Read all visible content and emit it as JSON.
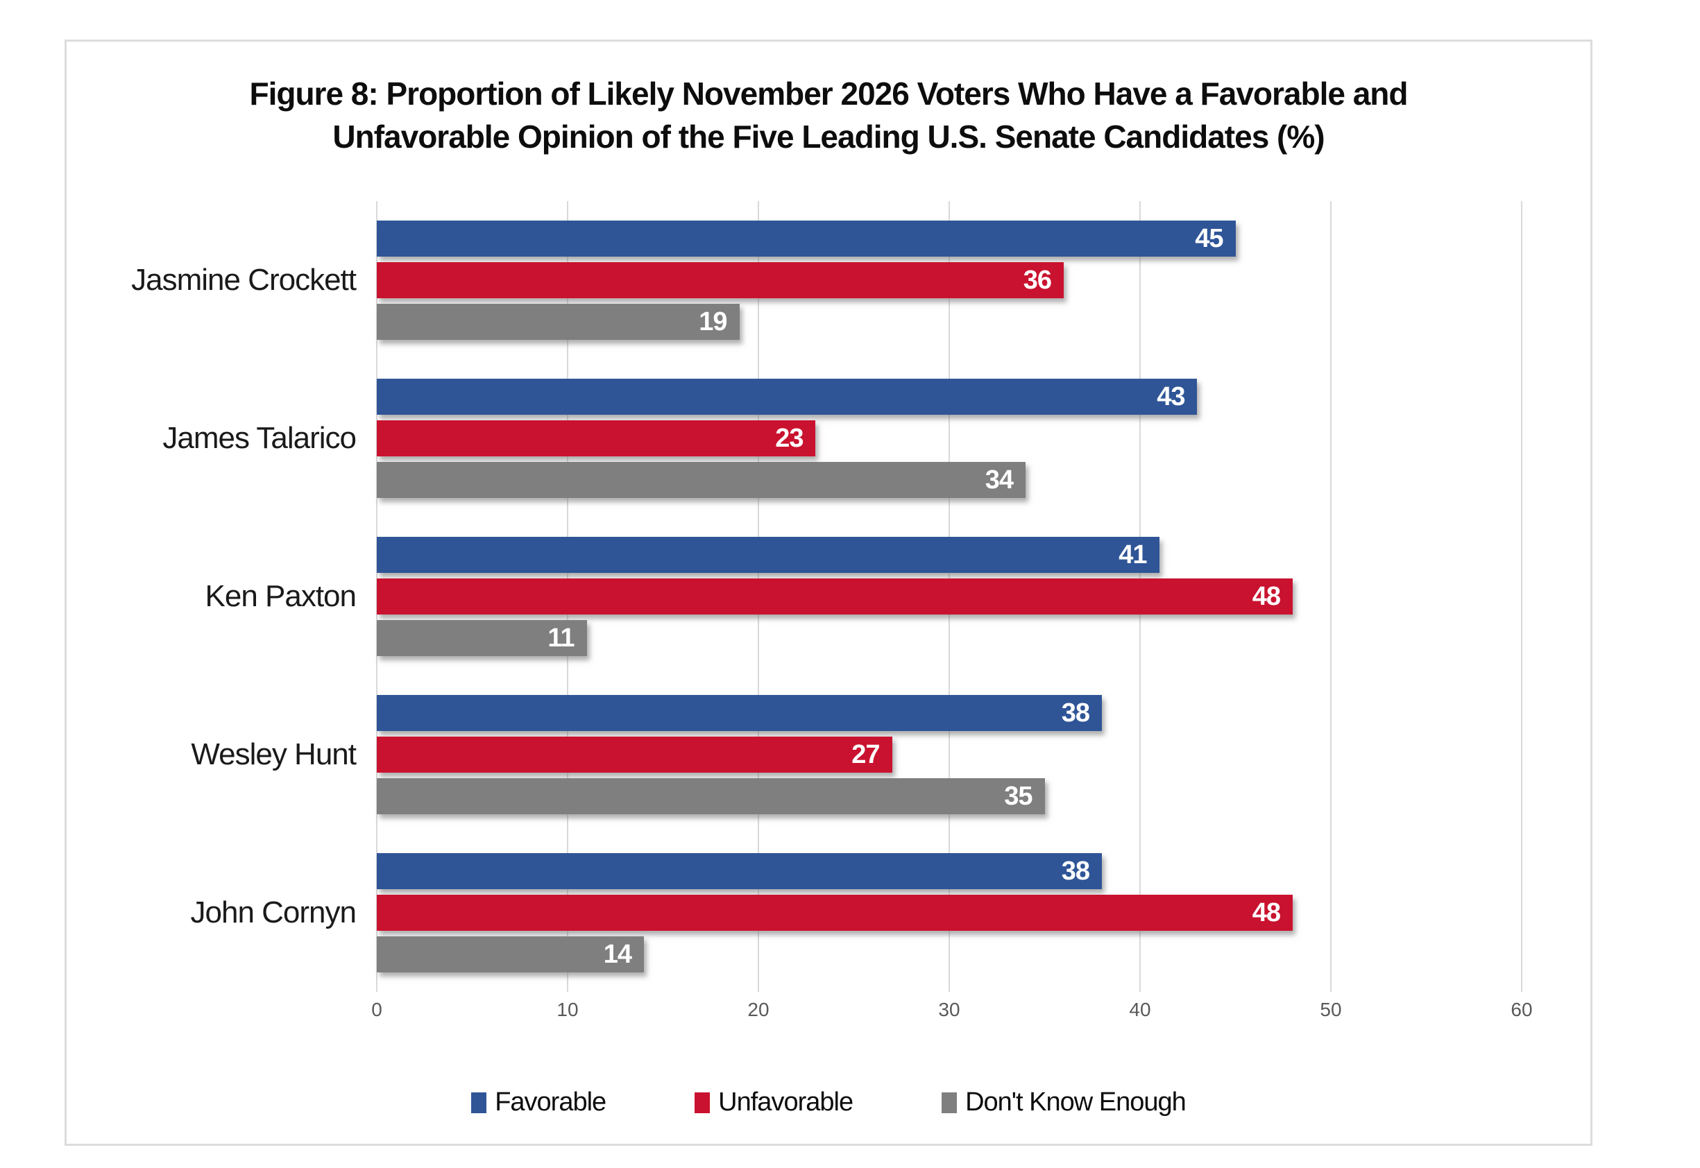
{
  "title": {
    "lines": [
      "Figure 8: Proportion of Likely November 2026 Voters Who Have a Favorable and",
      "Unfavorable Opinion of the Five Leading U.S. Senate Candidates (%)"
    ]
  },
  "chart_data": {
    "type": "bar",
    "orientation": "horizontal",
    "title": "Figure 8: Proportion of Likely November 2026 Voters Who Have a Favorable and Unfavorable Opinion of the Five Leading U.S. Senate Candidates (%)",
    "categories": [
      "Jasmine Crockett",
      "James Talarico",
      "Ken Paxton",
      "Wesley Hunt",
      "John Cornyn"
    ],
    "series": [
      {
        "name": "Favorable",
        "color": "#2f5597",
        "values": [
          45,
          43,
          41,
          38,
          38
        ]
      },
      {
        "name": "Unfavorable",
        "color": "#c9122f",
        "values": [
          36,
          23,
          48,
          27,
          48
        ]
      },
      {
        "name": "Don't Know Enough",
        "color": "#7f7f7f",
        "values": [
          19,
          34,
          11,
          35,
          14
        ]
      }
    ],
    "value_labels_shown": true,
    "x_ticks": [
      0,
      10,
      20,
      30,
      40,
      50,
      60
    ],
    "xlim": [
      0,
      60
    ],
    "xlabel": "",
    "ylabel": "",
    "grid": "vertical",
    "gridline_color": "#d9d9d9",
    "legend_position": "bottom",
    "value_label_color": "#ffffff",
    "axis_tick_color": "#595959"
  }
}
